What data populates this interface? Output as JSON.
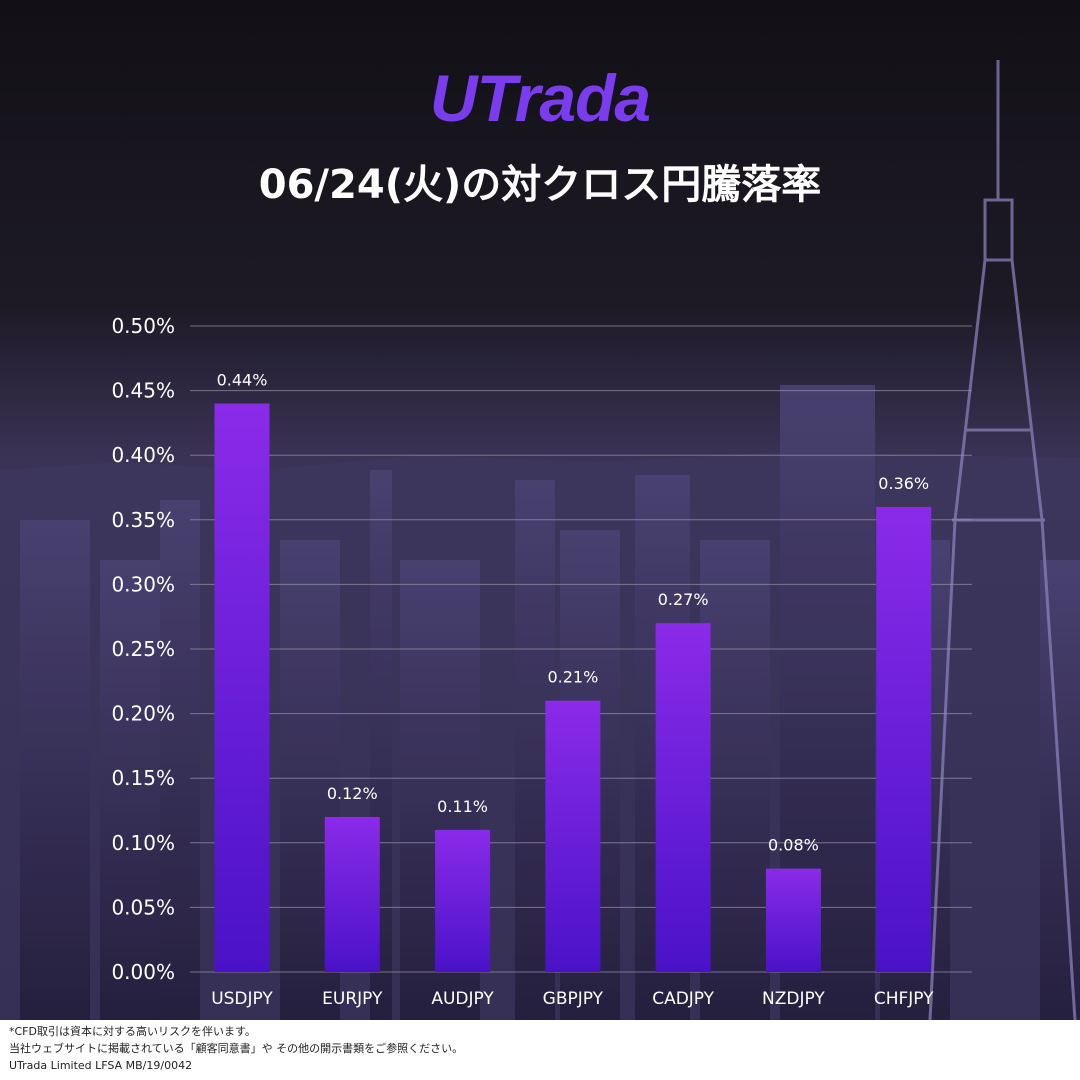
{
  "brand": {
    "logo_text": "UTrada"
  },
  "header": {
    "title": "06/24(火)の対クロス円騰落率"
  },
  "chart_data": {
    "type": "bar",
    "title": "06/24(火)の対クロス円騰落率",
    "categories": [
      "USDJPY",
      "EURJPY",
      "AUDJPY",
      "GBPJPY",
      "CADJPY",
      "NZDJPY",
      "CHFJPY"
    ],
    "values": [
      0.44,
      0.12,
      0.11,
      0.21,
      0.27,
      0.08,
      0.36
    ],
    "data_labels": [
      "0.44%",
      "0.12%",
      "0.11%",
      "0.21%",
      "0.27%",
      "0.08%",
      "0.36%"
    ],
    "yticks": [
      "0.00%",
      "0.05%",
      "0.10%",
      "0.15%",
      "0.20%",
      "0.25%",
      "0.30%",
      "0.35%",
      "0.40%",
      "0.45%",
      "0.50%"
    ],
    "ylim": [
      0,
      0.5
    ],
    "grid": true,
    "legend": false,
    "bar_color_top": "#8a2be8",
    "bar_color_bottom": "#4a12c8"
  },
  "footer": {
    "line1": "*CFD取引は資本に対する高いリスクを伴います。",
    "line2": "当社ウェブサイトに掲載されている「顧客同意書」や その他の開示書類をご参照ください。",
    "line3": "UTrada Limited LFSA MB/19/0042"
  }
}
